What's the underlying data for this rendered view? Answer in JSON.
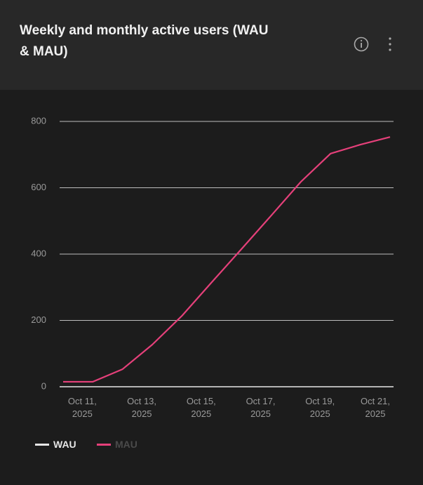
{
  "header": {
    "title": "Weekly and monthly active users (WAU & MAU)"
  },
  "chart_data": {
    "type": "line",
    "categories": [
      null,
      "Oct 11, 2025",
      null,
      "Oct 13, 2025",
      null,
      "Oct 15, 2025",
      null,
      "Oct 17, 2025",
      null,
      "Oct 19, 2025",
      null,
      "Oct 21, 2025"
    ],
    "series": [
      {
        "name": "MAU",
        "color": "#e5407a",
        "values": [
          15,
          15,
          53,
          127,
          214,
          315,
          415,
          516,
          618,
          703,
          730,
          753
        ]
      }
    ],
    "legend": [
      {
        "name": "WAU",
        "color": "#e6e6e6"
      },
      {
        "name": "MAU",
        "color": "#e5407a"
      }
    ],
    "ylim": [
      0,
      800
    ],
    "yticks": [
      0,
      200,
      400,
      600,
      800
    ],
    "grid": true
  }
}
